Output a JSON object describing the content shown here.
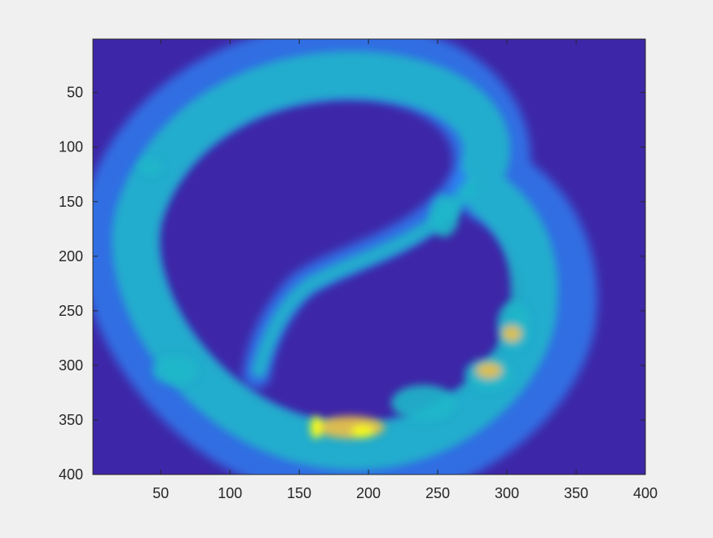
{
  "chart_data": {
    "type": "heatmap",
    "title": "",
    "xlabel": "",
    "ylabel": "",
    "xlim": [
      1,
      400
    ],
    "ylim": [
      1,
      400
    ],
    "y_direction": "reversed",
    "x_ticks": [
      50,
      100,
      150,
      200,
      250,
      300,
      350,
      400
    ],
    "y_ticks": [
      50,
      100,
      150,
      200,
      250,
      300,
      350,
      400
    ],
    "grid": false,
    "colormap": "parula",
    "colors": {
      "background": "#3e26a8",
      "body_low": "#2e87f7",
      "body_mid": "#1fb7c9",
      "body_high": "#fbbf3c",
      "body_peak": "#f9fb15",
      "figure_bg": "#f0f0f0",
      "axes_edge": "#262626"
    }
  }
}
